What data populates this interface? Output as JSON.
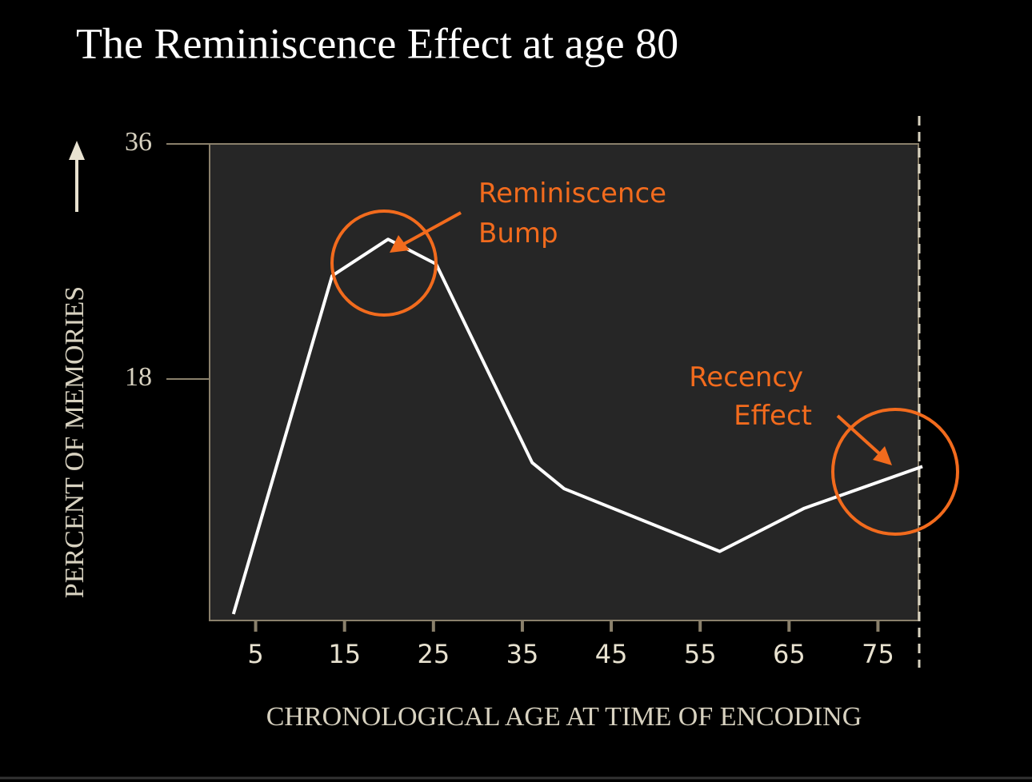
{
  "chart_data": {
    "type": "line",
    "title": "The Reminiscence Effect at age 80",
    "x_label": "CHRONOLOGICAL AGE AT TIME OF ENCODING",
    "y_label": "PERCENT OF MEMORIES",
    "x": [
      2.5,
      13.6,
      19.9,
      25.3,
      36.1,
      39.7,
      57.2,
      66.7,
      80
    ],
    "series": [
      {
        "color": "#ffffff",
        "values": [
          0,
          25.9,
          28.7,
          26.8,
          11.6,
          9.6,
          4.8,
          8.1,
          11.3
        ]
      }
    ],
    "xlim": [
      0,
      80
    ],
    "xticks": [
      5,
      15,
      25,
      35,
      45,
      55,
      65,
      75
    ],
    "ylim": [
      0,
      36
    ],
    "yticks": [
      18,
      36
    ],
    "annotations": [
      {
        "lines": [
          "Reminiscence",
          "Bump"
        ],
        "color": "#f26b1d"
      },
      {
        "lines": [
          "Recency",
          "Effect"
        ],
        "color": "#f26b1d"
      }
    ]
  }
}
